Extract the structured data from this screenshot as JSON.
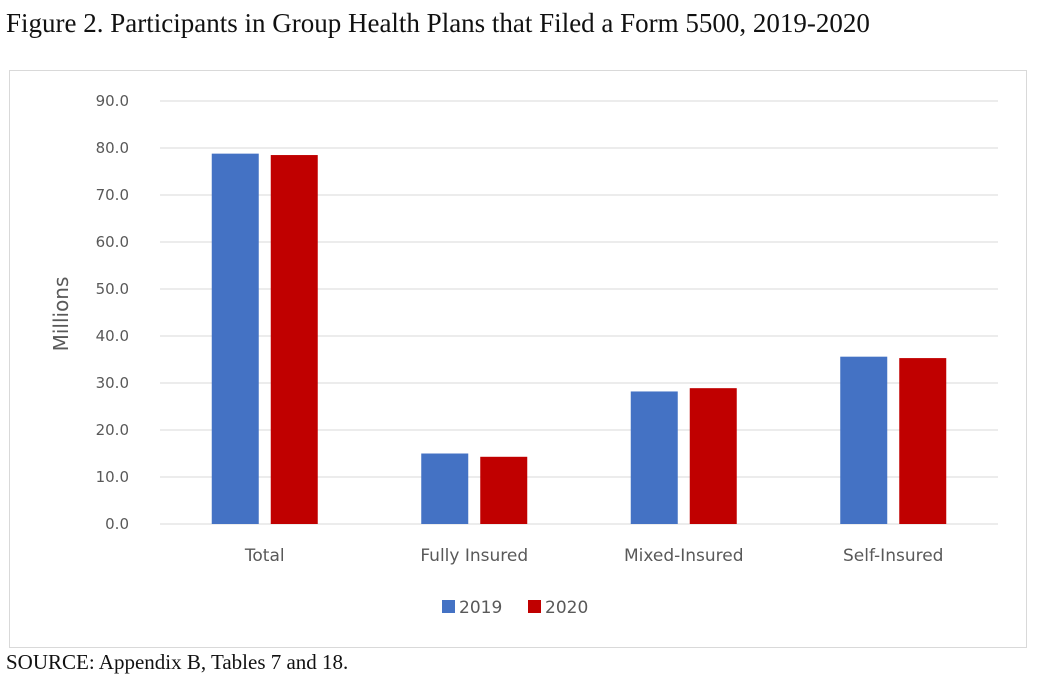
{
  "figure_title": "Figure 2. Participants in Group Health Plans that Filed a Form 5500, 2019-2020",
  "source_note": "SOURCE: Appendix B, Tables 7 and 18.",
  "colors": {
    "series_2019": "#4472C4",
    "series_2020": "#C00000",
    "grid": "#d9d9d9",
    "text": "#595959"
  },
  "chart_data": {
    "type": "bar",
    "title": "",
    "xlabel": "",
    "ylabel": "Millions",
    "ylim": [
      0,
      90
    ],
    "yticks": [
      "0.0",
      "10.0",
      "20.0",
      "30.0",
      "40.0",
      "50.0",
      "60.0",
      "70.0",
      "80.0",
      "90.0"
    ],
    "grid": true,
    "legend_position": "bottom",
    "categories": [
      "Total",
      "Fully Insured",
      "Mixed-Insured",
      "Self-Insured"
    ],
    "series": [
      {
        "name": "2019",
        "values": [
          78.8,
          15.0,
          28.2,
          35.6
        ]
      },
      {
        "name": "2020",
        "values": [
          78.5,
          14.3,
          28.9,
          35.3
        ]
      }
    ]
  }
}
